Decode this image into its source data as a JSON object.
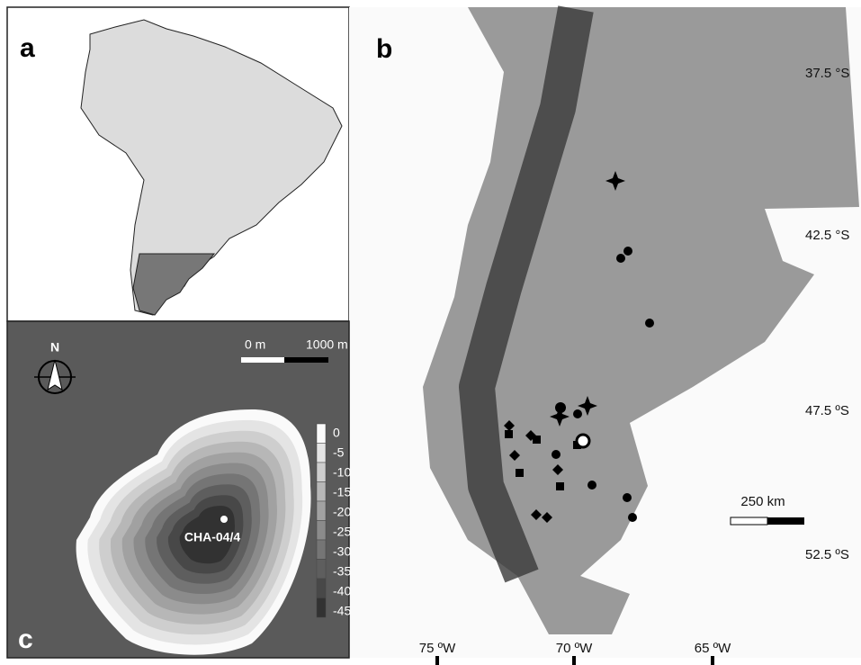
{
  "panels": {
    "a": {
      "label": "a"
    },
    "b": {
      "label": "b",
      "latitude_labels": [
        "37.5 °S",
        "42.5 °S",
        "47.5 ºS",
        "52.5 ºS"
      ],
      "longitude_labels": [
        "75 ºW",
        "70 ºW",
        "65 ºW"
      ],
      "scale_bar": "250 km"
    },
    "c": {
      "label": "c",
      "north": "N",
      "scale_bar": [
        "0 m",
        "1000 m"
      ],
      "depth_legend": [
        0,
        -5,
        -10,
        -15,
        -20,
        -25,
        -30,
        -35,
        -40,
        -45
      ],
      "site": "CHA-04/4"
    }
  }
}
